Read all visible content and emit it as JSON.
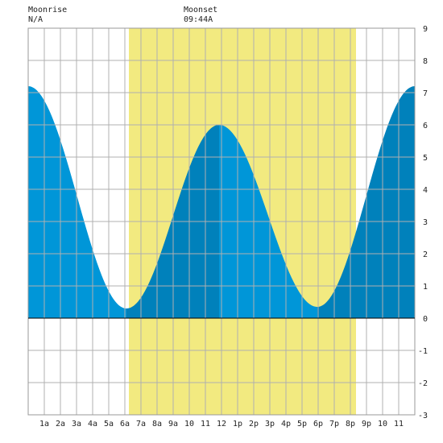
{
  "moonrise": {
    "label": "Moonrise",
    "value": "N/A"
  },
  "moonset": {
    "label": "Moonset",
    "value": "09:44A"
  },
  "colors": {
    "daylight": "#f2ea80",
    "tide_light": "#0096d8",
    "tide_dark": "#0081bb",
    "grid": "#b0b0b0",
    "background": "#ffffff"
  },
  "chart_data": {
    "type": "area",
    "x_unit": "hour of day",
    "xlim": [
      0,
      24
    ],
    "ylim": [
      -3,
      9
    ],
    "y_ticks": [
      "-3",
      "-2",
      "-1",
      "0",
      "1",
      "2",
      "3",
      "4",
      "5",
      "6",
      "7",
      "8",
      "9"
    ],
    "x_ticks": [
      {
        "label": "1a",
        "hour": 1
      },
      {
        "label": "2a",
        "hour": 2
      },
      {
        "label": "3a",
        "hour": 3
      },
      {
        "label": "4a",
        "hour": 4
      },
      {
        "label": "5a",
        "hour": 5
      },
      {
        "label": "6a",
        "hour": 6
      },
      {
        "label": "7a",
        "hour": 7
      },
      {
        "label": "8a",
        "hour": 8
      },
      {
        "label": "9a",
        "hour": 9
      },
      {
        "label": "10",
        "hour": 10
      },
      {
        "label": "11",
        "hour": 11
      },
      {
        "label": "12",
        "hour": 12
      },
      {
        "label": "1p",
        "hour": 13
      },
      {
        "label": "2p",
        "hour": 14
      },
      {
        "label": "3p",
        "hour": 15
      },
      {
        "label": "4p",
        "hour": 16
      },
      {
        "label": "5p",
        "hour": 17
      },
      {
        "label": "6p",
        "hour": 18
      },
      {
        "label": "7p",
        "hour": 19
      },
      {
        "label": "8p",
        "hour": 20
      },
      {
        "label": "9p",
        "hour": 21
      },
      {
        "label": "10",
        "hour": 22
      },
      {
        "label": "11",
        "hour": 23
      }
    ],
    "daylight": {
      "start_hour": 6.25,
      "end_hour": 20.35
    },
    "tide_extremes": [
      {
        "hour": 0.0,
        "height": 7.2,
        "kind": "high"
      },
      {
        "hour": 6.1,
        "height": 0.3,
        "kind": "low"
      },
      {
        "hour": 11.85,
        "height": 6.0,
        "kind": "high"
      },
      {
        "hour": 17.95,
        "height": 0.35,
        "kind": "low"
      },
      {
        "hour": 24.0,
        "height": 7.2,
        "kind": "high"
      }
    ],
    "grid": true
  }
}
